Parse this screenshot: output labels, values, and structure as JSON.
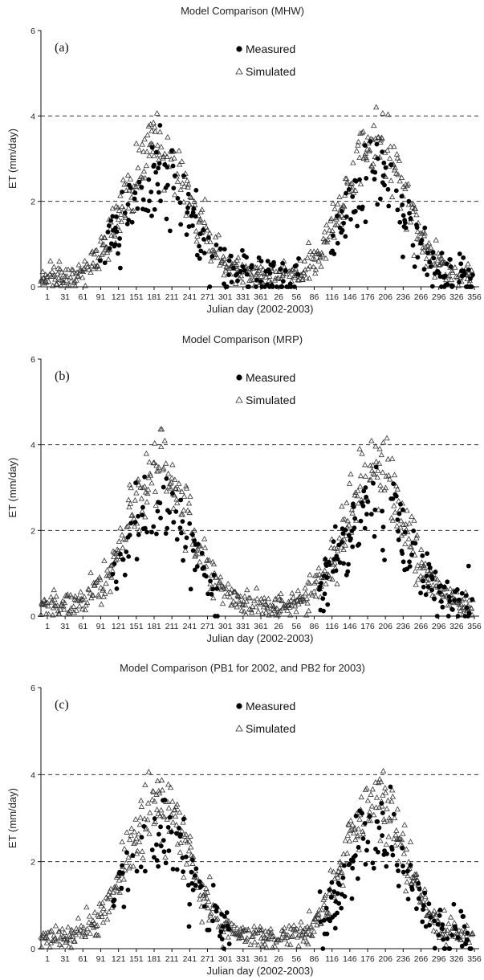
{
  "chart_data": [
    {
      "type": "scatter",
      "panel_label": "(a)",
      "title": "Model Comparison (MHW)",
      "xlabel": "Julian day (2002-2003)",
      "ylabel": "ET (mm/day)",
      "ylim": [
        0,
        6
      ],
      "yticks": [
        "0",
        "2",
        "4",
        "6"
      ],
      "xticks": [
        "1",
        "31",
        "61",
        "91",
        "121",
        "151",
        "181",
        "211",
        "241",
        "271",
        "301",
        "331",
        "361",
        "26",
        "56",
        "86",
        "116",
        "146",
        "176",
        "206",
        "236",
        "266",
        "296",
        "326",
        "356"
      ],
      "reference_lines": [
        2,
        4
      ],
      "legend": [
        "Measured",
        "Simulated"
      ],
      "series": [
        {
          "name": "Measured",
          "marker": "filled-circle",
          "x": [],
          "y": []
        },
        {
          "name": "Simulated",
          "marker": "open-triangle",
          "x": [],
          "y": []
        }
      ]
    },
    {
      "type": "scatter",
      "panel_label": "(b)",
      "title": "Model Comparison (MRP)",
      "xlabel": "Julian day (2002-2003)",
      "ylabel": "ET (mm/day)",
      "ylim": [
        0,
        6
      ],
      "yticks": [
        "0",
        "2",
        "4",
        "6"
      ],
      "xticks": [
        "1",
        "31",
        "61",
        "91",
        "121",
        "151",
        "181",
        "211",
        "241",
        "271",
        "301",
        "331",
        "361",
        "26",
        "56",
        "86",
        "116",
        "146",
        "176",
        "206",
        "236",
        "266",
        "296",
        "326",
        "356"
      ],
      "reference_lines": [
        2,
        4
      ],
      "legend": [
        "Measured",
        "Simulated"
      ],
      "series": [
        {
          "name": "Measured",
          "marker": "filled-circle",
          "x": [],
          "y": []
        },
        {
          "name": "Simulated",
          "marker": "open-triangle",
          "x": [],
          "y": []
        }
      ]
    },
    {
      "type": "scatter",
      "panel_label": "(c)",
      "title": "Model Comparison (PB1 for 2002, and PB2 for 2003)",
      "xlabel": "Julian day (2002-2003)",
      "ylabel": "ET (mm/day)",
      "ylim": [
        0,
        6
      ],
      "yticks": [
        "0",
        "2",
        "4",
        "6"
      ],
      "xticks": [
        "1",
        "31",
        "61",
        "91",
        "121",
        "151",
        "181",
        "211",
        "241",
        "271",
        "301",
        "331",
        "361",
        "26",
        "56",
        "86",
        "116",
        "146",
        "176",
        "206",
        "236",
        "266",
        "296",
        "326",
        "356"
      ],
      "reference_lines": [
        2,
        4
      ],
      "legend": [
        "Measured",
        "Simulated"
      ],
      "series": [
        {
          "name": "Measured",
          "marker": "filled-circle",
          "x": [],
          "y": []
        },
        {
          "name": "Simulated",
          "marker": "open-triangle",
          "x": [],
          "y": []
        }
      ]
    }
  ]
}
